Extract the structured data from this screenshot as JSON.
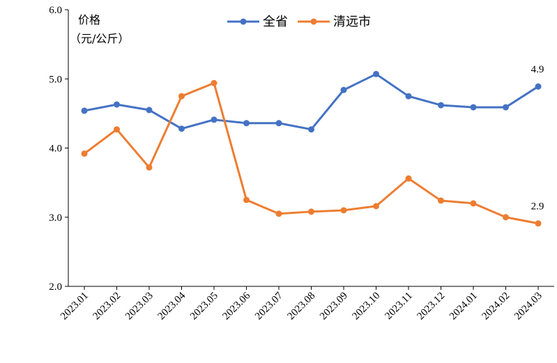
{
  "chart_data": {
    "type": "line",
    "categories": [
      "2023.01",
      "2023.02",
      "2023.03",
      "2023.04",
      "2023.05",
      "2023.06",
      "2023.07",
      "2023.08",
      "2023.09",
      "2023.10",
      "2023.11",
      "2023.12",
      "2024.01",
      "2024.02",
      "2024.03"
    ],
    "series": [
      {
        "name": "全省",
        "color": "#4472C4",
        "values": [
          4.54,
          4.63,
          4.55,
          4.28,
          4.41,
          4.36,
          4.36,
          4.27,
          4.84,
          5.07,
          4.75,
          4.62,
          4.59,
          4.59,
          4.89
        ],
        "end_label": "4.9"
      },
      {
        "name": "清远市",
        "color": "#ED7D31",
        "values": [
          3.92,
          4.27,
          3.72,
          4.75,
          4.94,
          3.25,
          3.05,
          3.08,
          3.1,
          3.16,
          3.56,
          3.24,
          3.2,
          3.0,
          2.91
        ],
        "end_label": "2.9"
      }
    ],
    "yaxis": {
      "title_line1": "价格",
      "title_line2": "（元/公斤）",
      "ticks": [
        "2.0",
        "3.0",
        "4.0",
        "5.0",
        "6.0"
      ],
      "ylim": [
        2.0,
        6.0
      ]
    },
    "legend": {
      "placement": "top-center"
    },
    "grid": false
  }
}
